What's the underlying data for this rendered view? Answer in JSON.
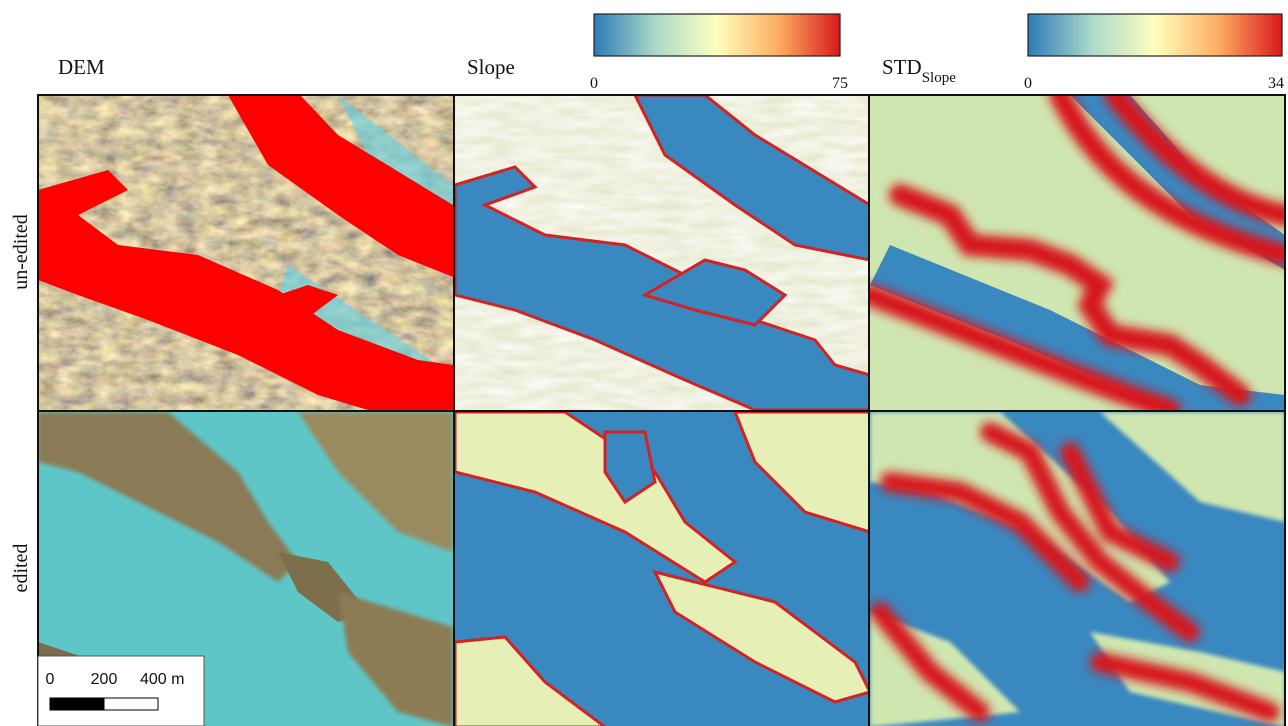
{
  "columns": [
    {
      "title": "DEM"
    },
    {
      "title": "Slope"
    },
    {
      "title": "STD",
      "subscript": "Slope"
    }
  ],
  "rows": [
    {
      "label": "un-edited"
    },
    {
      "label": "edited"
    }
  ],
  "colorbars": [
    {
      "min": 0,
      "max": 75
    },
    {
      "min": 0,
      "max": 34
    }
  ],
  "scale_bar": {
    "labels": [
      "0",
      "200",
      "400 m"
    ]
  }
}
